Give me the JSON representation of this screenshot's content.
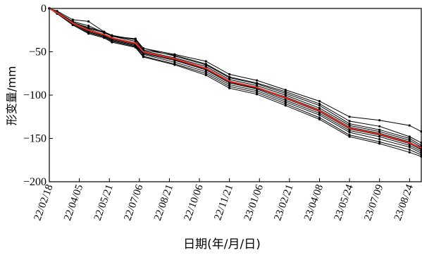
{
  "chart_data": {
    "type": "line",
    "title": "",
    "xlabel": "日期(年/月/日)",
    "ylabel": "形变量/mm",
    "ylim": [
      -200,
      0
    ],
    "yticks": [
      0,
      -50,
      -100,
      -150,
      -200
    ],
    "xlim": [
      "2022-02-18",
      "2023-09-11"
    ],
    "xtick_dates": [
      "2022-02-18",
      "2022-04-05",
      "2022-05-21",
      "2022-07-06",
      "2022-08-21",
      "2022-10-06",
      "2022-11-21",
      "2023-01-06",
      "2023-02-21",
      "2023-04-08",
      "2023-05-24",
      "2023-07-09",
      "2023-08-24"
    ],
    "xtick_labels": [
      "22/02/18",
      "22/04/05",
      "22/05/21",
      "22/07/06",
      "22/08/21",
      "22/10/06",
      "22/11/21",
      "23/01/06",
      "23/02/21",
      "23/04/08",
      "23/05/24",
      "23/07/09",
      "23/08/24"
    ],
    "grid": false,
    "series_colors": {
      "black": "#000000",
      "red": "#e8332a"
    },
    "series": [
      {
        "color": "black",
        "points": [
          [
            "2022-02-18",
            0
          ],
          [
            "2022-03-02",
            -3
          ],
          [
            "2022-03-26",
            -13
          ],
          [
            "2022-04-19",
            -15
          ],
          [
            "2022-05-13",
            -27
          ],
          [
            "2022-05-25",
            -32
          ],
          [
            "2022-06-30",
            -35
          ],
          [
            "2022-07-12",
            -46
          ],
          [
            "2022-08-29",
            -53
          ],
          [
            "2022-10-16",
            -61
          ],
          [
            "2022-11-21",
            -76
          ],
          [
            "2023-01-02",
            -83
          ],
          [
            "2023-02-15",
            -94
          ],
          [
            "2023-04-08",
            -107
          ],
          [
            "2023-05-24",
            -125
          ],
          [
            "2023-07-09",
            -129
          ],
          [
            "2023-08-24",
            -135
          ],
          [
            "2023-09-11",
            -142
          ]
        ]
      },
      {
        "color": "black",
        "points": [
          [
            "2022-02-18",
            0
          ],
          [
            "2022-03-02",
            -4
          ],
          [
            "2022-03-26",
            -15
          ],
          [
            "2022-04-19",
            -20
          ],
          [
            "2022-05-13",
            -28
          ],
          [
            "2022-05-25",
            -32
          ],
          [
            "2022-06-30",
            -36
          ],
          [
            "2022-07-12",
            -48
          ],
          [
            "2022-08-29",
            -54
          ],
          [
            "2022-10-16",
            -64
          ],
          [
            "2022-11-21",
            -79
          ],
          [
            "2023-01-02",
            -86
          ],
          [
            "2023-02-15",
            -96
          ],
          [
            "2023-04-08",
            -110
          ],
          [
            "2023-05-24",
            -130
          ],
          [
            "2023-07-09",
            -136
          ],
          [
            "2023-08-24",
            -148
          ],
          [
            "2023-09-11",
            -155
          ]
        ]
      },
      {
        "color": "black",
        "points": [
          [
            "2022-02-18",
            0
          ],
          [
            "2022-03-02",
            -4
          ],
          [
            "2022-03-26",
            -16
          ],
          [
            "2022-04-19",
            -22
          ],
          [
            "2022-05-13",
            -27
          ],
          [
            "2022-05-25",
            -31
          ],
          [
            "2022-06-30",
            -36
          ],
          [
            "2022-07-12",
            -46
          ],
          [
            "2022-08-29",
            -55
          ],
          [
            "2022-10-16",
            -65
          ],
          [
            "2022-11-21",
            -80
          ],
          [
            "2023-01-02",
            -87
          ],
          [
            "2023-02-15",
            -98
          ],
          [
            "2023-04-08",
            -112
          ],
          [
            "2023-05-24",
            -133
          ],
          [
            "2023-07-09",
            -140
          ],
          [
            "2023-08-24",
            -150
          ],
          [
            "2023-09-11",
            -158
          ]
        ]
      },
      {
        "color": "black",
        "points": [
          [
            "2022-02-18",
            0
          ],
          [
            "2022-03-02",
            -4
          ],
          [
            "2022-03-26",
            -16
          ],
          [
            "2022-04-19",
            -23
          ],
          [
            "2022-05-13",
            -28
          ],
          [
            "2022-05-25",
            -32
          ],
          [
            "2022-06-30",
            -38
          ],
          [
            "2022-07-12",
            -49
          ],
          [
            "2022-08-29",
            -57
          ],
          [
            "2022-10-16",
            -67
          ],
          [
            "2022-11-21",
            -82
          ],
          [
            "2023-01-02",
            -89
          ],
          [
            "2023-02-15",
            -100
          ],
          [
            "2023-04-08",
            -115
          ],
          [
            "2023-05-24",
            -135
          ],
          [
            "2023-07-09",
            -142
          ],
          [
            "2023-08-24",
            -152
          ],
          [
            "2023-09-11",
            -160
          ]
        ]
      },
      {
        "color": "black",
        "points": [
          [
            "2022-02-18",
            0
          ],
          [
            "2022-03-02",
            -5
          ],
          [
            "2022-03-26",
            -17
          ],
          [
            "2022-04-19",
            -24
          ],
          [
            "2022-05-13",
            -30
          ],
          [
            "2022-05-25",
            -34
          ],
          [
            "2022-06-30",
            -40
          ],
          [
            "2022-07-12",
            -50
          ],
          [
            "2022-08-29",
            -58
          ],
          [
            "2022-10-16",
            -69
          ],
          [
            "2022-11-21",
            -84
          ],
          [
            "2023-01-02",
            -91
          ],
          [
            "2023-02-15",
            -102
          ],
          [
            "2023-04-08",
            -117
          ],
          [
            "2023-05-24",
            -137
          ],
          [
            "2023-07-09",
            -144
          ],
          [
            "2023-08-24",
            -154
          ],
          [
            "2023-09-11",
            -162
          ]
        ]
      },
      {
        "color": "black",
        "points": [
          [
            "2022-02-18",
            0
          ],
          [
            "2022-03-02",
            -5
          ],
          [
            "2022-03-26",
            -17
          ],
          [
            "2022-04-19",
            -25
          ],
          [
            "2022-05-13",
            -30
          ],
          [
            "2022-05-25",
            -35
          ],
          [
            "2022-06-30",
            -41
          ],
          [
            "2022-07-12",
            -51
          ],
          [
            "2022-08-29",
            -59
          ],
          [
            "2022-10-16",
            -70
          ],
          [
            "2022-11-21",
            -85
          ],
          [
            "2023-01-02",
            -92
          ],
          [
            "2023-02-15",
            -104
          ],
          [
            "2023-04-08",
            -119
          ],
          [
            "2023-05-24",
            -139
          ],
          [
            "2023-07-09",
            -146
          ],
          [
            "2023-08-24",
            -156
          ],
          [
            "2023-09-11",
            -163
          ]
        ]
      },
      {
        "color": "black",
        "points": [
          [
            "2022-02-18",
            0
          ],
          [
            "2022-03-02",
            -5
          ],
          [
            "2022-03-26",
            -18
          ],
          [
            "2022-04-19",
            -26
          ],
          [
            "2022-05-13",
            -31
          ],
          [
            "2022-05-25",
            -36
          ],
          [
            "2022-06-30",
            -42
          ],
          [
            "2022-07-12",
            -52
          ],
          [
            "2022-08-29",
            -60
          ],
          [
            "2022-10-16",
            -71
          ],
          [
            "2022-11-21",
            -86
          ],
          [
            "2023-01-02",
            -93
          ],
          [
            "2023-02-15",
            -106
          ],
          [
            "2023-04-08",
            -121
          ],
          [
            "2023-05-24",
            -141
          ],
          [
            "2023-07-09",
            -148
          ],
          [
            "2023-08-24",
            -158
          ],
          [
            "2023-09-11",
            -165
          ]
        ]
      },
      {
        "color": "black",
        "points": [
          [
            "2022-02-18",
            0
          ],
          [
            "2022-03-02",
            -6
          ],
          [
            "2022-03-26",
            -18
          ],
          [
            "2022-04-19",
            -27
          ],
          [
            "2022-05-13",
            -32
          ],
          [
            "2022-05-25",
            -37
          ],
          [
            "2022-06-30",
            -43
          ],
          [
            "2022-07-12",
            -53
          ],
          [
            "2022-08-29",
            -62
          ],
          [
            "2022-10-16",
            -73
          ],
          [
            "2022-11-21",
            -88
          ],
          [
            "2023-01-02",
            -95
          ],
          [
            "2023-02-15",
            -108
          ],
          [
            "2023-04-08",
            -123
          ],
          [
            "2023-05-24",
            -143
          ],
          [
            "2023-07-09",
            -151
          ],
          [
            "2023-08-24",
            -160
          ],
          [
            "2023-09-11",
            -167
          ]
        ]
      },
      {
        "color": "black",
        "points": [
          [
            "2022-02-18",
            0
          ],
          [
            "2022-03-02",
            -6
          ],
          [
            "2022-03-26",
            -19
          ],
          [
            "2022-04-19",
            -28
          ],
          [
            "2022-05-13",
            -33
          ],
          [
            "2022-05-25",
            -38
          ],
          [
            "2022-06-30",
            -44
          ],
          [
            "2022-07-12",
            -55
          ],
          [
            "2022-08-29",
            -64
          ],
          [
            "2022-10-16",
            -75
          ],
          [
            "2022-11-21",
            -90
          ],
          [
            "2023-01-02",
            -97
          ],
          [
            "2023-02-15",
            -110
          ],
          [
            "2023-04-08",
            -126
          ],
          [
            "2023-05-24",
            -146
          ],
          [
            "2023-07-09",
            -154
          ],
          [
            "2023-08-24",
            -163
          ],
          [
            "2023-09-11",
            -169
          ]
        ]
      },
      {
        "color": "black",
        "points": [
          [
            "2022-02-18",
            0
          ],
          [
            "2022-03-02",
            -6
          ],
          [
            "2022-03-26",
            -19
          ],
          [
            "2022-04-19",
            -29
          ],
          [
            "2022-05-13",
            -34
          ],
          [
            "2022-05-25",
            -39
          ],
          [
            "2022-06-30",
            -45
          ],
          [
            "2022-07-12",
            -56
          ],
          [
            "2022-08-29",
            -65
          ],
          [
            "2022-10-16",
            -77
          ],
          [
            "2022-11-21",
            -92
          ],
          [
            "2023-01-02",
            -99
          ],
          [
            "2023-02-15",
            -112
          ],
          [
            "2023-04-08",
            -128
          ],
          [
            "2023-05-24",
            -148
          ],
          [
            "2023-07-09",
            -156
          ],
          [
            "2023-08-24",
            -166
          ],
          [
            "2023-09-11",
            -171
          ]
        ]
      },
      {
        "color": "red",
        "points": [
          [
            "2022-02-18",
            0
          ],
          [
            "2022-03-02",
            -5
          ],
          [
            "2022-03-26",
            -17
          ],
          [
            "2022-04-19",
            -25
          ],
          [
            "2022-05-13",
            -30
          ],
          [
            "2022-05-25",
            -34
          ],
          [
            "2022-06-30",
            -40
          ],
          [
            "2022-07-12",
            -50
          ],
          [
            "2022-08-29",
            -58
          ],
          [
            "2022-10-16",
            -69
          ],
          [
            "2022-11-21",
            -84
          ],
          [
            "2023-01-02",
            -91
          ],
          [
            "2023-02-15",
            -103
          ],
          [
            "2023-04-08",
            -118
          ],
          [
            "2023-05-24",
            -138
          ],
          [
            "2023-07-09",
            -145
          ],
          [
            "2023-08-24",
            -155
          ],
          [
            "2023-09-11",
            -161
          ]
        ]
      }
    ]
  }
}
